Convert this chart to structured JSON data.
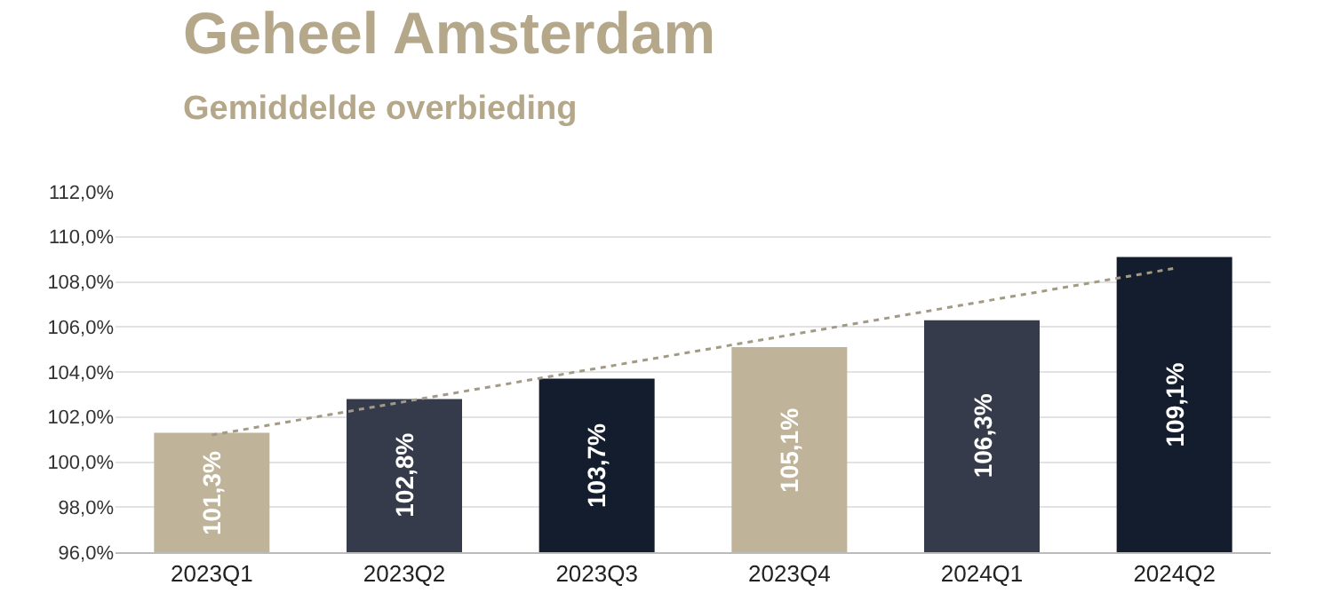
{
  "chart_data": {
    "type": "bar",
    "title": "Geheel Amsterdam",
    "subtitle": "Gemiddelde overbieding",
    "categories": [
      "2023Q1",
      "2023Q2",
      "2023Q3",
      "2023Q4",
      "2024Q1",
      "2024Q2"
    ],
    "series": [
      {
        "values": [
          101.3,
          102.8,
          103.7,
          105.1,
          106.3,
          109.1
        ],
        "colors": [
          "#bfb39a",
          "#363b4b",
          "#141d2e",
          "#bfb39a",
          "#363b4b",
          "#141d2e"
        ],
        "value_labels": [
          "101,3%",
          "102,8%",
          "103,7%",
          "105,1%",
          "106,3%",
          "109,1%"
        ]
      },
      {
        "type": "line",
        "x": [
          "2023Q1",
          "2024Q2"
        ],
        "values": [
          101.2,
          108.6
        ],
        "color": "#a39a85",
        "line_style": "dotted"
      }
    ],
    "ylim": [
      96,
      112
    ],
    "yticks": [
      {
        "value": 96,
        "label": "96,0%"
      },
      {
        "value": 98,
        "label": "98,0%"
      },
      {
        "value": 100,
        "label": "100,0%"
      },
      {
        "value": 102,
        "label": "102,0%"
      },
      {
        "value": 104,
        "label": "104,0%"
      },
      {
        "value": 106,
        "label": "106,0%"
      },
      {
        "value": 108,
        "label": "108,0%"
      },
      {
        "value": 110,
        "label": "110,0%"
      },
      {
        "value": 112,
        "label": "112,0%"
      }
    ],
    "grid": "y",
    "legend": false
  }
}
